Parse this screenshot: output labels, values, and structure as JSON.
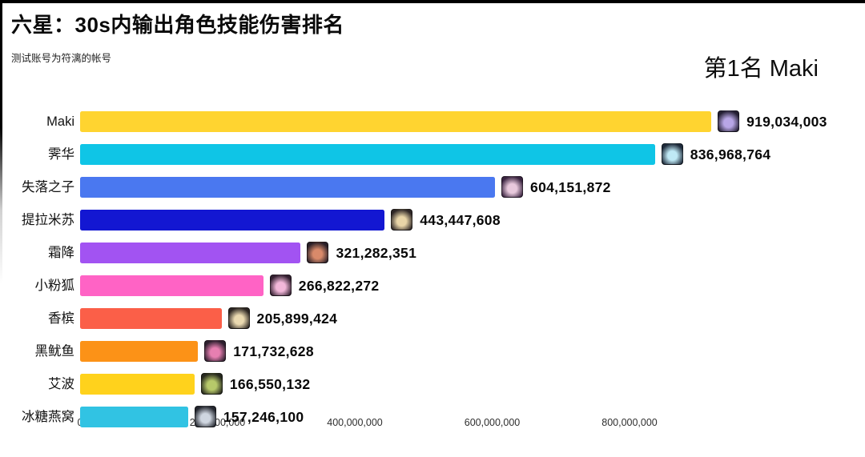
{
  "header": {
    "title": "六星：30s内输出角色技能伤害排名",
    "subtitle": "测试账号为符漓的帐号",
    "rank_banner": "第1名 Maki"
  },
  "chart_data": {
    "type": "bar",
    "orientation": "horizontal",
    "title": "六星：30s内输出角色技能伤害排名",
    "subtitle": "测试账号为符漓的帐号",
    "annotation": "第1名 Maki",
    "xlabel": "",
    "ylabel": "",
    "xlim": [
      0,
      950000000
    ],
    "grid": false,
    "legend": "none",
    "x_ticks": [
      0,
      200000000,
      400000000,
      600000000,
      800000000
    ],
    "x_tick_labels": [
      "0",
      "200,000,000",
      "400,000,000",
      "600,000,000",
      "800,000,000"
    ],
    "bars": [
      {
        "rank": 1,
        "name": "Maki",
        "value": 919034003,
        "value_label": "919,034,003",
        "color": "#FFD430",
        "avatar_accent": "#b8a6e6",
        "avatar_base": "#241f33"
      },
      {
        "rank": 2,
        "name": "霁华",
        "value": 836968764,
        "value_label": "836,968,764",
        "color": "#0FC5E6",
        "avatar_accent": "#bfe9f5",
        "avatar_base": "#1e2a3a"
      },
      {
        "rank": 3,
        "name": "失落之子",
        "value": 604151872,
        "value_label": "604,151,872",
        "color": "#4A78F0",
        "avatar_accent": "#e8c9dc",
        "avatar_base": "#3a2440"
      },
      {
        "rank": 4,
        "name": "提拉米苏",
        "value": 443447608,
        "value_label": "443,447,608",
        "color": "#1317D2",
        "avatar_accent": "#e9d5a8",
        "avatar_base": "#2e2626"
      },
      {
        "rank": 5,
        "name": "霜降",
        "value": 321282351,
        "value_label": "321,282,351",
        "color": "#A253F2",
        "avatar_accent": "#d98a6a",
        "avatar_base": "#2a2028"
      },
      {
        "rank": 6,
        "name": "小粉狐",
        "value": 266822272,
        "value_label": "266,822,272",
        "color": "#FF63C5",
        "avatar_accent": "#f2b7d9",
        "avatar_base": "#332030"
      },
      {
        "rank": 7,
        "name": "香槟",
        "value": 205899424,
        "value_label": "205,899,424",
        "color": "#FB5F48",
        "avatar_accent": "#ead9b0",
        "avatar_base": "#2b2522"
      },
      {
        "rank": 8,
        "name": "黑鱿鱼",
        "value": 171732628,
        "value_label": "171,732,628",
        "color": "#FC9217",
        "avatar_accent": "#e77fb1",
        "avatar_base": "#2d1f2e"
      },
      {
        "rank": 9,
        "name": "艾波",
        "value": 166550132,
        "value_label": "166,550,132",
        "color": "#FFD21C",
        "avatar_accent": "#b7c96a",
        "avatar_base": "#26281e"
      },
      {
        "rank": 10,
        "name": "冰糖燕窝",
        "value": 157246100,
        "value_label": "157,246,100",
        "color": "#31C3E3",
        "avatar_accent": "#cfd6e0",
        "avatar_base": "#23262e"
      }
    ]
  }
}
